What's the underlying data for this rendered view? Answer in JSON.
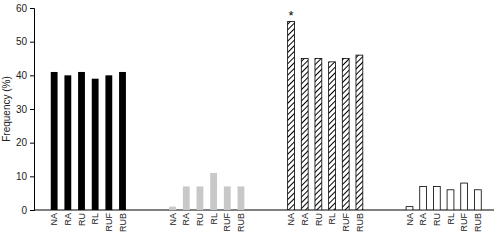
{
  "chart_data": {
    "type": "bar",
    "y_label": "Frequency (%)",
    "categories": [
      "NA",
      "RA",
      "RU",
      "RL",
      "RUF",
      "RUB"
    ],
    "series": [
      {
        "color": "#000000",
        "values": [
          41,
          40,
          41,
          39,
          40,
          41
        ]
      },
      {
        "color": "#c8c8c8",
        "values": [
          1,
          7,
          7,
          11,
          7,
          7
        ]
      },
      {
        "color": "#000000",
        "values": [
          56,
          45,
          45,
          44,
          45,
          46
        ],
        "annotations": [
          {
            "x": "NA",
            "text": "*"
          }
        ]
      },
      {
        "color": "#ffffff",
        "values": [
          1,
          7,
          7,
          6,
          8,
          6
        ]
      }
    ],
    "ylim": [
      0,
      60
    ],
    "yticks": [
      0,
      10,
      20,
      30,
      40,
      50,
      60
    ],
    "grid": false
  }
}
